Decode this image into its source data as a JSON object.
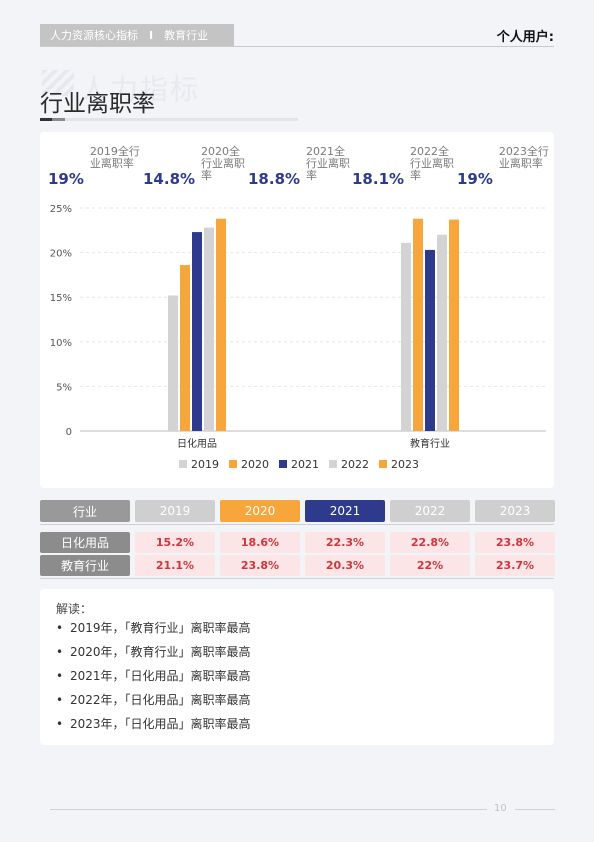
{
  "header": {
    "crumb1": "人力资源核心指标",
    "separator": "I",
    "crumb2": "教育行业",
    "user": "个人用户:"
  },
  "watermark": "人力指标",
  "page_title": "行业离职率",
  "stats": [
    {
      "value": "19%",
      "label": "2019全行业离职率"
    },
    {
      "value": "14.8%",
      "label": "2020全行业离职率"
    },
    {
      "value": "18.8%",
      "label": "2021全行业离职率"
    },
    {
      "value": "18.1%",
      "label": "2022全行业离职率"
    },
    {
      "value": "19%",
      "label": "2023全行业离职率"
    }
  ],
  "chart_data": {
    "type": "bar",
    "categories": [
      "日化用品",
      "教育行业"
    ],
    "series": [
      {
        "name": "2019",
        "values": [
          15.2,
          21.1
        ]
      },
      {
        "name": "2020",
        "values": [
          18.6,
          23.8
        ]
      },
      {
        "name": "2021",
        "values": [
          22.3,
          20.3
        ]
      },
      {
        "name": "2022",
        "values": [
          22.8,
          22.0
        ]
      },
      {
        "name": "2023",
        "values": [
          23.8,
          23.7
        ]
      }
    ],
    "y_ticks": [
      "0",
      "5%",
      "10%",
      "15%",
      "20%",
      "25%"
    ],
    "ylim": [
      0,
      25
    ],
    "grid": true,
    "legend": "bottom",
    "colors": [
      "#d3d3d3",
      "#f6a63a",
      "#2e3a8c",
      "#d3d3d3",
      "#f6a63a"
    ]
  },
  "table": {
    "header_label": "行业",
    "years": [
      "2019",
      "2020",
      "2021",
      "2022",
      "2023"
    ],
    "year_colors": [
      "#cfcfcf",
      "#f6a63a",
      "#2e3a8c",
      "#cfcfcf",
      "#cfcfcf"
    ],
    "header_label_color": "#999999",
    "rows": [
      {
        "name": "日化用品",
        "values": [
          "15.2%",
          "18.6%",
          "22.3%",
          "22.8%",
          "23.8%"
        ]
      },
      {
        "name": "教育行业",
        "values": [
          "21.1%",
          "23.8%",
          "20.3%",
          "22%",
          "23.7%"
        ]
      }
    ]
  },
  "notes": {
    "title": "解读：",
    "items": [
      "2019年，「教育行业」离职率最高",
      "2020年，「教育行业」离职率最高",
      "2021年，「日化用品」离职率最高",
      "2022年，「日化用品」离职率最高",
      "2023年，「日化用品」离职率最高"
    ]
  },
  "footer": {
    "page_number": "10"
  }
}
